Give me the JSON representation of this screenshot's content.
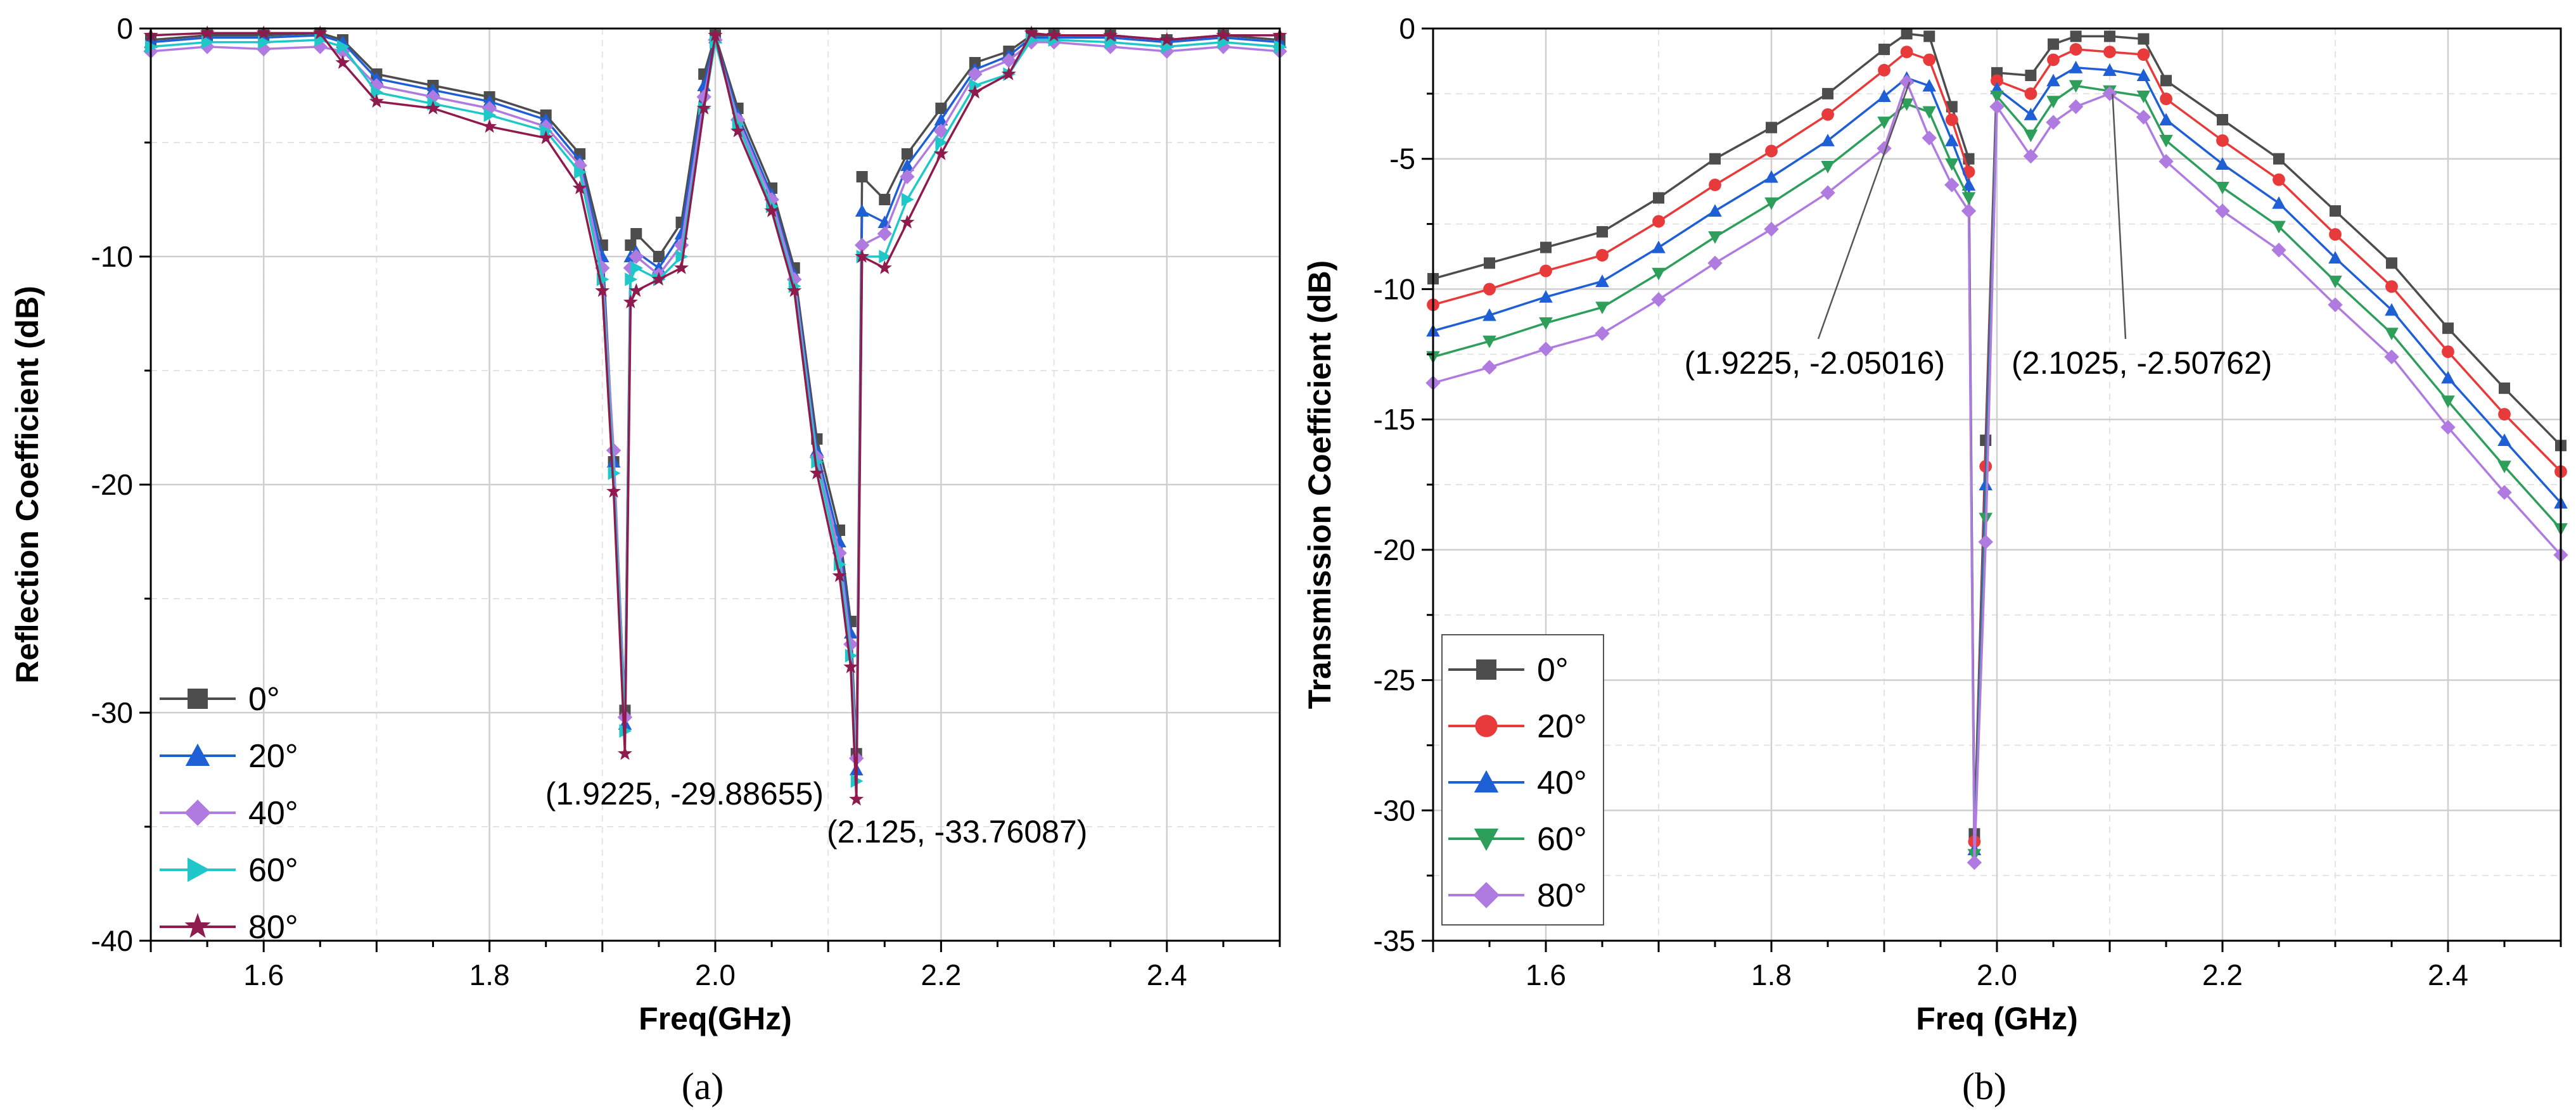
{
  "chart_data": [
    {
      "type": "line",
      "panel": "a",
      "caption": "(a)",
      "xlabel": "Freq(GHz)",
      "ylabel": "Reflection Coefficient (dB)",
      "xlim": [
        1.5,
        2.5
      ],
      "ylim": [
        -40,
        0
      ],
      "xticks": [
        "1.6",
        "1.8",
        "2.0",
        "2.2",
        "2.4"
      ],
      "yticks": [
        "0",
        "-10",
        "-20",
        "-30",
        "-40"
      ],
      "grid": true,
      "legend_position": "bottom-left",
      "series": [
        {
          "name": "0°",
          "color": "#4d4d4d",
          "marker": "square",
          "x": [
            1.5,
            1.55,
            1.6,
            1.65,
            1.67,
            1.7,
            1.75,
            1.8,
            1.85,
            1.88,
            1.9,
            1.91,
            1.92,
            1.925,
            1.93,
            1.95,
            1.97,
            1.99,
            2.0,
            2.02,
            2.05,
            2.07,
            2.09,
            2.11,
            2.12,
            2.125,
            2.13,
            2.15,
            2.17,
            2.2,
            2.23,
            2.26,
            2.28,
            2.3,
            2.35,
            2.4,
            2.45,
            2.5
          ],
          "y": [
            -0.5,
            -0.3,
            -0.3,
            -0.2,
            -0.5,
            -2.0,
            -2.5,
            -3.0,
            -3.8,
            -5.5,
            -9.5,
            -19.0,
            -29.9,
            -9.5,
            -9.0,
            -10.0,
            -8.5,
            -2.0,
            -0.3,
            -3.5,
            -7.0,
            -10.5,
            -18.0,
            -22.0,
            -26.0,
            -31.8,
            -6.5,
            -7.5,
            -5.5,
            -3.5,
            -1.5,
            -1.0,
            -0.3,
            -0.3,
            -0.3,
            -0.5,
            -0.3,
            -0.5
          ]
        },
        {
          "name": "20°",
          "color": "#1f5fd6",
          "marker": "triangle-up",
          "x": [
            1.5,
            1.55,
            1.6,
            1.65,
            1.67,
            1.7,
            1.75,
            1.8,
            1.85,
            1.88,
            1.9,
            1.91,
            1.92,
            1.925,
            1.93,
            1.95,
            1.97,
            1.99,
            2.0,
            2.02,
            2.05,
            2.07,
            2.09,
            2.11,
            2.12,
            2.125,
            2.13,
            2.15,
            2.17,
            2.2,
            2.23,
            2.26,
            2.28,
            2.3,
            2.35,
            2.4,
            2.45,
            2.5
          ],
          "y": [
            -0.6,
            -0.4,
            -0.4,
            -0.3,
            -0.6,
            -2.2,
            -2.7,
            -3.2,
            -4.0,
            -5.8,
            -10.0,
            -19.0,
            -30.5,
            -10.0,
            -9.8,
            -10.5,
            -9.0,
            -2.5,
            -0.4,
            -3.8,
            -7.3,
            -10.8,
            -18.5,
            -22.5,
            -26.5,
            -32.5,
            -8.0,
            -8.5,
            -6.0,
            -4.0,
            -1.8,
            -1.2,
            -0.4,
            -0.4,
            -0.4,
            -0.6,
            -0.4,
            -0.6
          ]
        },
        {
          "name": "40°",
          "color": "#b07be0",
          "marker": "diamond",
          "x": [
            1.5,
            1.55,
            1.6,
            1.65,
            1.67,
            1.7,
            1.75,
            1.8,
            1.85,
            1.88,
            1.9,
            1.91,
            1.92,
            1.925,
            1.93,
            1.95,
            1.97,
            1.99,
            2.0,
            2.02,
            2.05,
            2.07,
            2.09,
            2.11,
            2.12,
            2.125,
            2.13,
            2.15,
            2.17,
            2.2,
            2.23,
            2.26,
            2.28,
            2.3,
            2.35,
            2.4,
            2.45,
            2.5
          ],
          "y": [
            -1.0,
            -0.8,
            -0.9,
            -0.8,
            -1.0,
            -2.5,
            -3.0,
            -3.5,
            -4.3,
            -6.0,
            -10.5,
            -18.5,
            -30.2,
            -10.5,
            -10.0,
            -10.8,
            -9.5,
            -3.0,
            -0.5,
            -4.0,
            -7.5,
            -11.0,
            -18.8,
            -23.0,
            -27.0,
            -32.0,
            -9.5,
            -9.0,
            -6.5,
            -4.5,
            -2.0,
            -1.4,
            -0.6,
            -0.6,
            -0.8,
            -1.0,
            -0.8,
            -1.0
          ]
        },
        {
          "name": "60°",
          "color": "#1fc8c8",
          "marker": "triangle-right",
          "x": [
            1.5,
            1.55,
            1.6,
            1.65,
            1.67,
            1.7,
            1.75,
            1.8,
            1.85,
            1.88,
            1.9,
            1.91,
            1.92,
            1.925,
            1.93,
            1.95,
            1.97,
            1.99,
            2.0,
            2.02,
            2.05,
            2.07,
            2.09,
            2.11,
            2.12,
            2.125,
            2.13,
            2.15,
            2.17,
            2.2,
            2.23,
            2.26,
            2.28,
            2.3,
            2.35,
            2.4,
            2.45,
            2.5
          ],
          "y": [
            -0.8,
            -0.6,
            -0.6,
            -0.5,
            -0.8,
            -2.8,
            -3.3,
            -3.8,
            -4.5,
            -6.3,
            -11.0,
            -19.5,
            -30.8,
            -11.0,
            -10.5,
            -11.0,
            -10.0,
            -3.5,
            -0.6,
            -4.2,
            -7.8,
            -11.3,
            -19.0,
            -23.5,
            -27.5,
            -33.0,
            -10.0,
            -10.0,
            -7.5,
            -5.0,
            -2.5,
            -2.0,
            -0.5,
            -0.5,
            -0.6,
            -0.8,
            -0.6,
            -0.8
          ]
        },
        {
          "name": "80°",
          "color": "#8e1a4e",
          "marker": "star",
          "x": [
            1.5,
            1.55,
            1.6,
            1.65,
            1.67,
            1.7,
            1.75,
            1.8,
            1.85,
            1.88,
            1.9,
            1.91,
            1.92,
            1.925,
            1.93,
            1.95,
            1.97,
            1.99,
            2.0,
            2.02,
            2.05,
            2.07,
            2.09,
            2.11,
            2.12,
            2.125,
            2.13,
            2.15,
            2.17,
            2.2,
            2.23,
            2.26,
            2.28,
            2.3,
            2.35,
            2.4,
            2.45,
            2.5
          ],
          "y": [
            -0.3,
            -0.2,
            -0.2,
            -0.2,
            -1.5,
            -3.2,
            -3.5,
            -4.3,
            -4.8,
            -7.0,
            -11.5,
            -20.3,
            -31.8,
            -12.0,
            -11.5,
            -11.0,
            -10.5,
            -3.5,
            -0.3,
            -4.5,
            -8.0,
            -11.5,
            -19.5,
            -24.0,
            -28.0,
            -33.8,
            -10.0,
            -10.5,
            -8.5,
            -5.5,
            -2.8,
            -2.0,
            -0.2,
            -0.3,
            -0.3,
            -0.5,
            -0.3,
            -0.3
          ]
        }
      ],
      "annotations": [
        {
          "text": "(1.9225, -29.88655)",
          "x": 1.9225,
          "y": -29.88655
        },
        {
          "text": "(2.125, -33.76087)",
          "x": 2.125,
          "y": -33.76087
        }
      ]
    },
    {
      "type": "line",
      "panel": "b",
      "caption": "(b)",
      "xlabel": "Freq (GHz)",
      "ylabel": "Transmission Coefficient (dB)",
      "xlim": [
        1.5,
        2.5
      ],
      "ylim": [
        -35,
        0
      ],
      "xticks": [
        "1.6",
        "1.8",
        "2.0",
        "2.2",
        "2.4"
      ],
      "yticks": [
        "0",
        "-5",
        "-10",
        "-15",
        "-20",
        "-25",
        "-30",
        "-35"
      ],
      "grid": true,
      "legend_position": "bottom-left",
      "series": [
        {
          "name": "0°",
          "color": "#4d4d4d",
          "marker": "square",
          "x": [
            1.5,
            1.55,
            1.6,
            1.65,
            1.7,
            1.75,
            1.8,
            1.85,
            1.9,
            1.92,
            1.94,
            1.96,
            1.975,
            1.98,
            1.99,
            2.0,
            2.03,
            2.05,
            2.07,
            2.1,
            2.13,
            2.15,
            2.2,
            2.25,
            2.3,
            2.35,
            2.4,
            2.45,
            2.5
          ],
          "y": [
            -9.6,
            -9.0,
            -8.4,
            -7.8,
            -6.5,
            -5.0,
            -3.8,
            -2.5,
            -0.8,
            -0.2,
            -0.3,
            -3.0,
            -5.0,
            -30.9,
            -15.8,
            -1.7,
            -1.8,
            -0.6,
            -0.3,
            -0.3,
            -0.4,
            -2.0,
            -3.5,
            -5.0,
            -7.0,
            -9.0,
            -11.5,
            -13.8,
            -16.0
          ]
        },
        {
          "name": "20°",
          "color": "#e83a3a",
          "marker": "circle",
          "x": [
            1.5,
            1.55,
            1.6,
            1.65,
            1.7,
            1.75,
            1.8,
            1.85,
            1.9,
            1.92,
            1.94,
            1.96,
            1.975,
            1.98,
            1.99,
            2.0,
            2.03,
            2.05,
            2.07,
            2.1,
            2.13,
            2.15,
            2.2,
            2.25,
            2.3,
            2.35,
            2.4,
            2.45,
            2.5
          ],
          "y": [
            -10.6,
            -10.0,
            -9.3,
            -8.7,
            -7.4,
            -6.0,
            -4.7,
            -3.3,
            -1.6,
            -0.9,
            -1.2,
            -3.5,
            -5.5,
            -31.2,
            -16.8,
            -2.0,
            -2.5,
            -1.2,
            -0.8,
            -0.9,
            -1.0,
            -2.7,
            -4.3,
            -5.8,
            -7.9,
            -9.9,
            -12.4,
            -14.8,
            -17.0
          ]
        },
        {
          "name": "40°",
          "color": "#1f5fd6",
          "marker": "triangle-up",
          "x": [
            1.5,
            1.55,
            1.6,
            1.65,
            1.7,
            1.75,
            1.8,
            1.85,
            1.9,
            1.92,
            1.94,
            1.96,
            1.975,
            1.98,
            1.99,
            2.0,
            2.03,
            2.05,
            2.07,
            2.1,
            2.13,
            2.15,
            2.2,
            2.25,
            2.3,
            2.35,
            2.4,
            2.45,
            2.5
          ],
          "y": [
            -11.6,
            -11.0,
            -10.3,
            -9.7,
            -8.4,
            -7.0,
            -5.7,
            -4.3,
            -2.6,
            -1.9,
            -2.2,
            -4.3,
            -6.0,
            -31.5,
            -17.5,
            -2.3,
            -3.3,
            -2.0,
            -1.5,
            -1.6,
            -1.8,
            -3.5,
            -5.2,
            -6.7,
            -8.8,
            -10.8,
            -13.4,
            -15.8,
            -18.2
          ]
        },
        {
          "name": "60°",
          "color": "#2e9e5b",
          "marker": "triangle-down",
          "x": [
            1.5,
            1.55,
            1.6,
            1.65,
            1.7,
            1.75,
            1.8,
            1.85,
            1.9,
            1.92,
            1.94,
            1.96,
            1.975,
            1.98,
            1.99,
            2.0,
            2.03,
            2.05,
            2.07,
            2.1,
            2.13,
            2.15,
            2.2,
            2.25,
            2.3,
            2.35,
            2.4,
            2.45,
            2.5
          ],
          "y": [
            -12.6,
            -12.0,
            -11.3,
            -10.7,
            -9.4,
            -8.0,
            -6.7,
            -5.3,
            -3.6,
            -2.9,
            -3.2,
            -5.2,
            -6.5,
            -31.7,
            -18.8,
            -2.6,
            -4.1,
            -2.8,
            -2.2,
            -2.4,
            -2.6,
            -4.3,
            -6.1,
            -7.6,
            -9.7,
            -11.7,
            -14.3,
            -16.8,
            -19.2
          ]
        },
        {
          "name": "80°",
          "color": "#b07be0",
          "marker": "diamond",
          "x": [
            1.5,
            1.55,
            1.6,
            1.65,
            1.7,
            1.75,
            1.8,
            1.85,
            1.9,
            1.92,
            1.94,
            1.96,
            1.975,
            1.98,
            1.99,
            2.0,
            2.03,
            2.05,
            2.07,
            2.1,
            2.13,
            2.15,
            2.2,
            2.25,
            2.3,
            2.35,
            2.4,
            2.45,
            2.5
          ],
          "y": [
            -13.6,
            -13.0,
            -12.3,
            -11.7,
            -10.4,
            -9.0,
            -7.7,
            -6.3,
            -4.6,
            -2.05,
            -4.2,
            -6.0,
            -7.0,
            -32.0,
            -19.7,
            -3.0,
            -4.9,
            -3.6,
            -3.0,
            -2.5,
            -3.4,
            -5.1,
            -7.0,
            -8.5,
            -10.6,
            -12.6,
            -15.3,
            -17.8,
            -20.2
          ]
        }
      ],
      "annotations": [
        {
          "text": "(1.9225, -2.05016)",
          "x": 1.9225,
          "y": -2.05016
        },
        {
          "text": "(2.1025, -2.50762)",
          "x": 2.1025,
          "y": -2.50762
        }
      ]
    }
  ]
}
